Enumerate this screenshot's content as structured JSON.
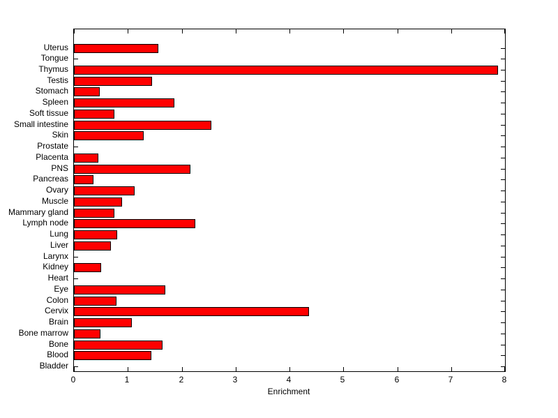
{
  "chart_data": {
    "type": "bar",
    "orientation": "horizontal",
    "title": "",
    "xlabel": "Enrichment",
    "ylabel": "",
    "xlim": [
      0,
      8
    ],
    "xticks": [
      0,
      1,
      2,
      3,
      4,
      5,
      6,
      7,
      8
    ],
    "grid": false,
    "legend": null,
    "bar_color": "#ff0000",
    "bar_edge_color": "#000000",
    "axis_color": "#000000",
    "background_color": "#ffffff",
    "categories_top_to_bottom": [
      "Uterus",
      "Tongue",
      "Thymus",
      "Testis",
      "Stomach",
      "Spleen",
      "Soft tissue",
      "Small intestine",
      "Skin",
      "Prostate",
      "Placenta",
      "PNS",
      "Pancreas",
      "Ovary",
      "Muscle",
      "Mammary gland",
      "Lymph node",
      "Lung",
      "Liver",
      "Larynx",
      "Kidney",
      "Heart",
      "Eye",
      "Colon",
      "Cervix",
      "Brain",
      "Bone marrow",
      "Bone",
      "Blood",
      "Bladder"
    ],
    "values": [
      1.57,
      0,
      7.87,
      1.45,
      0.48,
      1.87,
      0.75,
      2.55,
      1.3,
      0,
      0.45,
      2.16,
      0.36,
      1.13,
      0.89,
      0.75,
      2.25,
      0.8,
      0.69,
      0,
      0.51,
      0,
      1.7,
      0.79,
      4.36,
      1.08,
      0.49,
      1.64,
      1.44,
      0
    ]
  }
}
